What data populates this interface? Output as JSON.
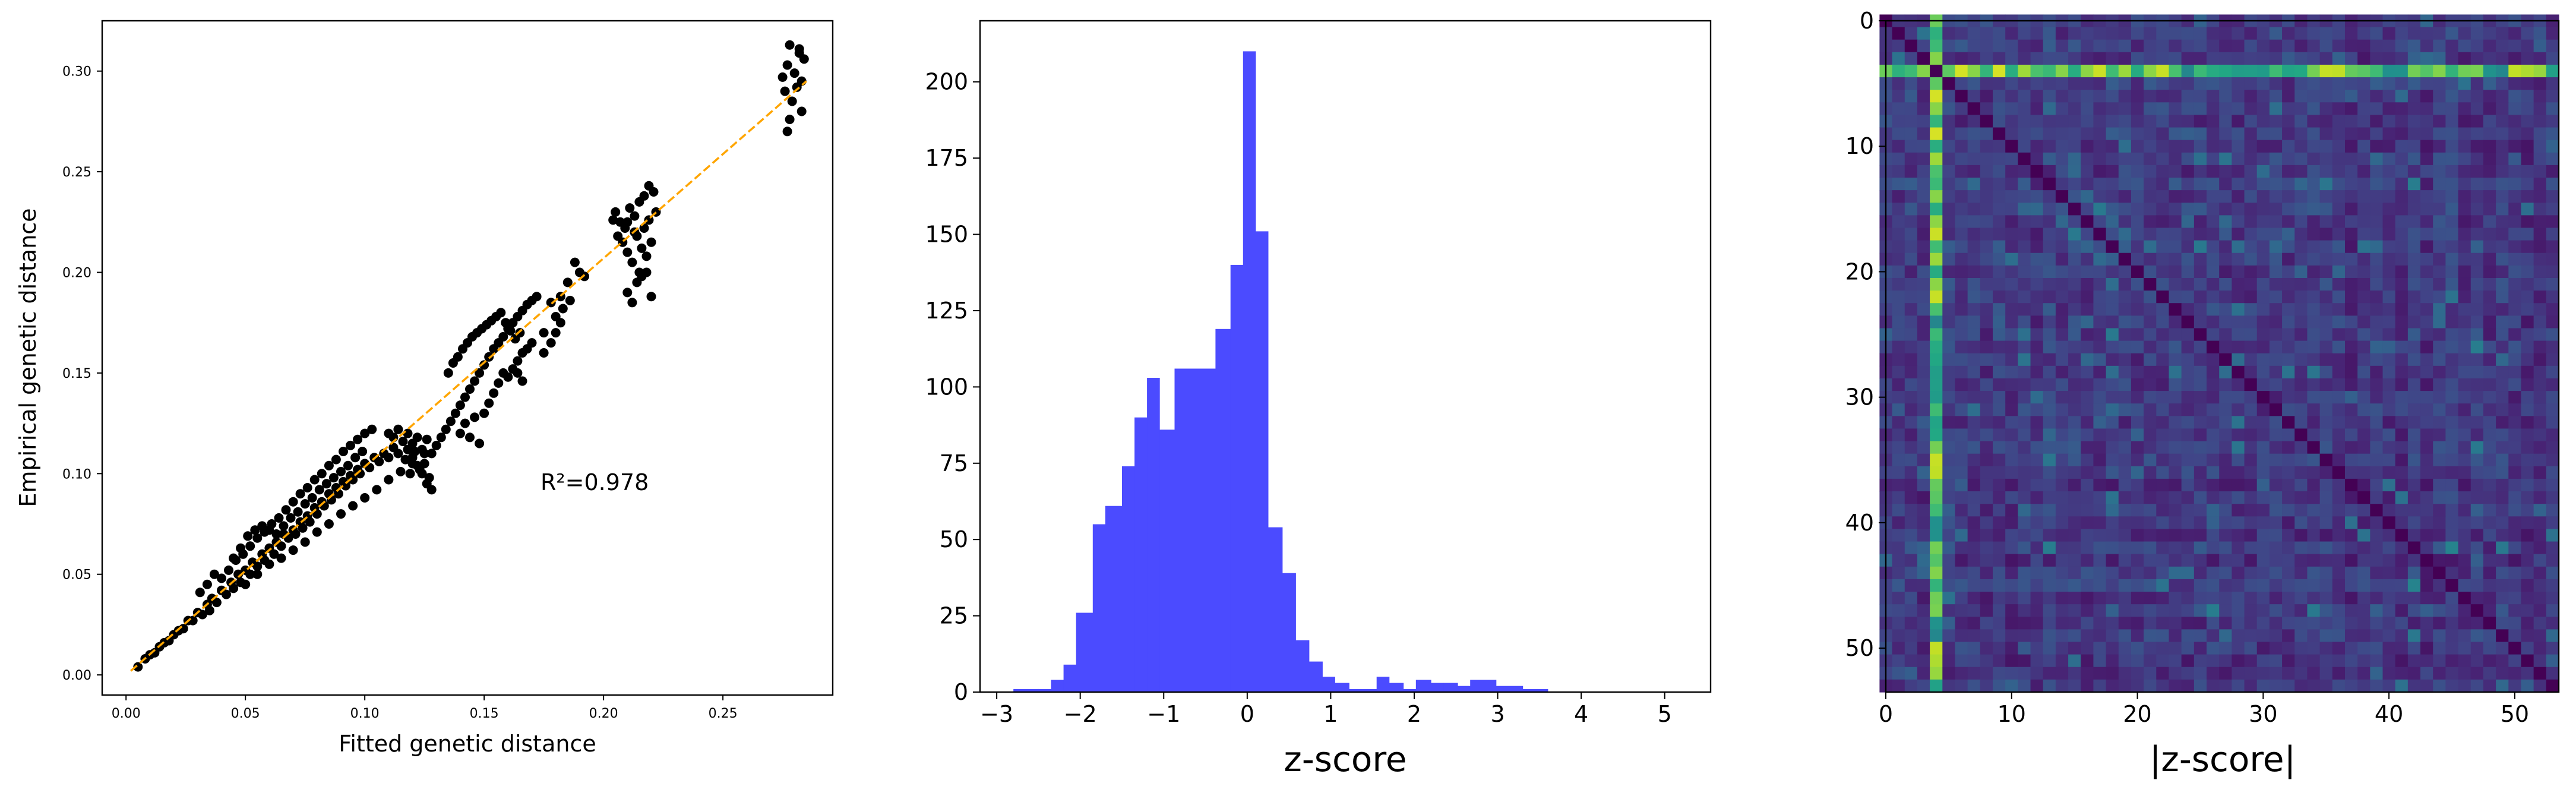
{
  "figure": {
    "panels": [
      {
        "id": "scatter"
      },
      {
        "id": "histogram"
      },
      {
        "id": "heatmap"
      }
    ]
  },
  "chart_data": [
    {
      "type": "scatter",
      "title": "",
      "xlabel": "Fitted genetic distance",
      "ylabel": "Empirical genetic distance",
      "xlim": [
        -0.01,
        0.296
      ],
      "ylim": [
        -0.01,
        0.325
      ],
      "xticks": [
        "0.00",
        "0.05",
        "0.10",
        "0.15",
        "0.20",
        "0.25"
      ],
      "yticks": [
        "0.00",
        "0.05",
        "0.10",
        "0.15",
        "0.20",
        "0.25",
        "0.30"
      ],
      "annotation": "R²=0.978",
      "fit_line": {
        "x": [
          0.002,
          0.285
        ],
        "y": [
          0.002,
          0.295
        ],
        "color": "#FFA500",
        "style": "dashed"
      },
      "point_color": "#000000",
      "points": [
        [
          0.005,
          0.004
        ],
        [
          0.008,
          0.008
        ],
        [
          0.01,
          0.01
        ],
        [
          0.012,
          0.011
        ],
        [
          0.014,
          0.014
        ],
        [
          0.016,
          0.016
        ],
        [
          0.018,
          0.017
        ],
        [
          0.02,
          0.02
        ],
        [
          0.022,
          0.022
        ],
        [
          0.024,
          0.023
        ],
        [
          0.026,
          0.027
        ],
        [
          0.028,
          0.027
        ],
        [
          0.03,
          0.031
        ],
        [
          0.032,
          0.03
        ],
        [
          0.034,
          0.035
        ],
        [
          0.035,
          0.032
        ],
        [
          0.036,
          0.038
        ],
        [
          0.038,
          0.036
        ],
        [
          0.04,
          0.042
        ],
        [
          0.042,
          0.04
        ],
        [
          0.044,
          0.046
        ],
        [
          0.045,
          0.043
        ],
        [
          0.047,
          0.05
        ],
        [
          0.048,
          0.046
        ],
        [
          0.05,
          0.052
        ],
        [
          0.052,
          0.05
        ],
        [
          0.053,
          0.056
        ],
        [
          0.055,
          0.054
        ],
        [
          0.057,
          0.06
        ],
        [
          0.058,
          0.057
        ],
        [
          0.06,
          0.063
        ],
        [
          0.062,
          0.06
        ],
        [
          0.063,
          0.066
        ],
        [
          0.065,
          0.064
        ],
        [
          0.066,
          0.07
        ],
        [
          0.068,
          0.068
        ],
        [
          0.07,
          0.072
        ],
        [
          0.071,
          0.07
        ],
        [
          0.073,
          0.076
        ],
        [
          0.074,
          0.073
        ],
        [
          0.076,
          0.079
        ],
        [
          0.077,
          0.076
        ],
        [
          0.079,
          0.083
        ],
        [
          0.08,
          0.08
        ],
        [
          0.082,
          0.086
        ],
        [
          0.083,
          0.084
        ],
        [
          0.085,
          0.09
        ],
        [
          0.086,
          0.087
        ],
        [
          0.088,
          0.093
        ],
        [
          0.089,
          0.09
        ],
        [
          0.091,
          0.096
        ],
        [
          0.092,
          0.094
        ],
        [
          0.094,
          0.099
        ],
        [
          0.095,
          0.097
        ],
        [
          0.097,
          0.102
        ],
        [
          0.098,
          0.1
        ],
        [
          0.1,
          0.105
        ],
        [
          0.102,
          0.103
        ],
        [
          0.104,
          0.108
        ],
        [
          0.106,
          0.106
        ],
        [
          0.108,
          0.11
        ],
        [
          0.11,
          0.108
        ],
        [
          0.112,
          0.113
        ],
        [
          0.114,
          0.11
        ],
        [
          0.04,
          0.048
        ],
        [
          0.043,
          0.052
        ],
        [
          0.046,
          0.057
        ],
        [
          0.049,
          0.06
        ],
        [
          0.052,
          0.064
        ],
        [
          0.055,
          0.068
        ],
        [
          0.058,
          0.071
        ],
        [
          0.061,
          0.075
        ],
        [
          0.064,
          0.078
        ],
        [
          0.067,
          0.082
        ],
        [
          0.07,
          0.086
        ],
        [
          0.073,
          0.09
        ],
        [
          0.076,
          0.093
        ],
        [
          0.079,
          0.097
        ],
        [
          0.082,
          0.1
        ],
        [
          0.085,
          0.104
        ],
        [
          0.088,
          0.107
        ],
        [
          0.091,
          0.111
        ],
        [
          0.094,
          0.114
        ],
        [
          0.097,
          0.117
        ],
        [
          0.1,
          0.12
        ],
        [
          0.103,
          0.122
        ],
        [
          0.031,
          0.041
        ],
        [
          0.034,
          0.045
        ],
        [
          0.037,
          0.05
        ],
        [
          0.045,
          0.058
        ],
        [
          0.048,
          0.063
        ],
        [
          0.051,
          0.069
        ],
        [
          0.054,
          0.072
        ],
        [
          0.057,
          0.074
        ],
        [
          0.06,
          0.072
        ],
        [
          0.063,
          0.07
        ],
        [
          0.066,
          0.074
        ],
        [
          0.069,
          0.078
        ],
        [
          0.072,
          0.081
        ],
        [
          0.075,
          0.085
        ],
        [
          0.078,
          0.088
        ],
        [
          0.081,
          0.092
        ],
        [
          0.084,
          0.095
        ],
        [
          0.087,
          0.098
        ],
        [
          0.09,
          0.101
        ],
        [
          0.093,
          0.104
        ],
        [
          0.096,
          0.108
        ],
        [
          0.099,
          0.111
        ],
        [
          0.05,
          0.045
        ],
        [
          0.055,
          0.05
        ],
        [
          0.06,
          0.055
        ],
        [
          0.065,
          0.058
        ],
        [
          0.07,
          0.062
        ],
        [
          0.075,
          0.066
        ],
        [
          0.08,
          0.071
        ],
        [
          0.085,
          0.075
        ],
        [
          0.09,
          0.08
        ],
        [
          0.095,
          0.084
        ],
        [
          0.1,
          0.088
        ],
        [
          0.105,
          0.092
        ],
        [
          0.11,
          0.097
        ],
        [
          0.115,
          0.101
        ],
        [
          0.12,
          0.105
        ],
        [
          0.125,
          0.11
        ],
        [
          0.118,
          0.12
        ],
        [
          0.12,
          0.115
        ],
        [
          0.122,
          0.118
        ],
        [
          0.124,
          0.112
        ],
        [
          0.126,
          0.117
        ],
        [
          0.128,
          0.11
        ],
        [
          0.13,
          0.114
        ],
        [
          0.132,
          0.118
        ],
        [
          0.134,
          0.122
        ],
        [
          0.136,
          0.126
        ],
        [
          0.138,
          0.13
        ],
        [
          0.14,
          0.134
        ],
        [
          0.142,
          0.138
        ],
        [
          0.144,
          0.142
        ],
        [
          0.146,
          0.146
        ],
        [
          0.148,
          0.15
        ],
        [
          0.15,
          0.154
        ],
        [
          0.152,
          0.158
        ],
        [
          0.154,
          0.162
        ],
        [
          0.156,
          0.165
        ],
        [
          0.158,
          0.168
        ],
        [
          0.16,
          0.172
        ],
        [
          0.162,
          0.175
        ],
        [
          0.164,
          0.178
        ],
        [
          0.166,
          0.181
        ],
        [
          0.168,
          0.184
        ],
        [
          0.17,
          0.186
        ],
        [
          0.172,
          0.188
        ],
        [
          0.135,
          0.15
        ],
        [
          0.137,
          0.155
        ],
        [
          0.139,
          0.158
        ],
        [
          0.141,
          0.162
        ],
        [
          0.143,
          0.165
        ],
        [
          0.145,
          0.168
        ],
        [
          0.147,
          0.17
        ],
        [
          0.149,
          0.172
        ],
        [
          0.151,
          0.174
        ],
        [
          0.153,
          0.176
        ],
        [
          0.155,
          0.178
        ],
        [
          0.157,
          0.18
        ],
        [
          0.159,
          0.175
        ],
        [
          0.161,
          0.171
        ],
        [
          0.163,
          0.167
        ],
        [
          0.165,
          0.17
        ],
        [
          0.14,
          0.12
        ],
        [
          0.142,
          0.125
        ],
        [
          0.144,
          0.118
        ],
        [
          0.146,
          0.128
        ],
        [
          0.148,
          0.115
        ],
        [
          0.15,
          0.13
        ],
        [
          0.152,
          0.135
        ],
        [
          0.154,
          0.14
        ],
        [
          0.156,
          0.145
        ],
        [
          0.158,
          0.15
        ],
        [
          0.16,
          0.148
        ],
        [
          0.162,
          0.152
        ],
        [
          0.164,
          0.156
        ],
        [
          0.166,
          0.16
        ],
        [
          0.168,
          0.162
        ],
        [
          0.17,
          0.165
        ],
        [
          0.175,
          0.17
        ],
        [
          0.18,
          0.178
        ],
        [
          0.185,
          0.195
        ],
        [
          0.188,
          0.205
        ],
        [
          0.19,
          0.2
        ],
        [
          0.192,
          0.198
        ],
        [
          0.178,
          0.185
        ],
        [
          0.182,
          0.188
        ],
        [
          0.183,
          0.182
        ],
        [
          0.186,
          0.186
        ],
        [
          0.175,
          0.16
        ],
        [
          0.178,
          0.165
        ],
        [
          0.18,
          0.17
        ],
        [
          0.182,
          0.175
        ],
        [
          0.164,
          0.15
        ],
        [
          0.166,
          0.146
        ],
        [
          0.205,
          0.23
        ],
        [
          0.207,
          0.225
        ],
        [
          0.209,
          0.222
        ],
        [
          0.211,
          0.232
        ],
        [
          0.213,
          0.228
        ],
        [
          0.215,
          0.235
        ],
        [
          0.217,
          0.238
        ],
        [
          0.219,
          0.243
        ],
        [
          0.221,
          0.24
        ],
        [
          0.208,
          0.215
        ],
        [
          0.21,
          0.21
        ],
        [
          0.212,
          0.205
        ],
        [
          0.214,
          0.218
        ],
        [
          0.216,
          0.212
        ],
        [
          0.218,
          0.208
        ],
        [
          0.22,
          0.215
        ],
        [
          0.21,
          0.19
        ],
        [
          0.212,
          0.185
        ],
        [
          0.214,
          0.195
        ],
        [
          0.216,
          0.198
        ],
        [
          0.218,
          0.2
        ],
        [
          0.22,
          0.188
        ],
        [
          0.213,
          0.22
        ],
        [
          0.219,
          0.226
        ],
        [
          0.21,
          0.225
        ],
        [
          0.215,
          0.2
        ],
        [
          0.206,
          0.218
        ],
        [
          0.222,
          0.23
        ],
        [
          0.204,
          0.226
        ],
        [
          0.217,
          0.222
        ],
        [
          0.275,
          0.297
        ],
        [
          0.276,
          0.29
        ],
        [
          0.277,
          0.303
        ],
        [
          0.278,
          0.313
        ],
        [
          0.279,
          0.285
        ],
        [
          0.28,
          0.299
        ],
        [
          0.281,
          0.292
        ],
        [
          0.282,
          0.311
        ],
        [
          0.283,
          0.28
        ],
        [
          0.284,
          0.306
        ],
        [
          0.283,
          0.295
        ],
        [
          0.277,
          0.27
        ],
        [
          0.278,
          0.276
        ],
        [
          0.282,
          0.309
        ],
        [
          0.11,
          0.12
        ],
        [
          0.112,
          0.118
        ],
        [
          0.114,
          0.122
        ],
        [
          0.116,
          0.116
        ],
        [
          0.118,
          0.112
        ],
        [
          0.12,
          0.108
        ],
        [
          0.122,
          0.104
        ],
        [
          0.124,
          0.1
        ],
        [
          0.126,
          0.095
        ],
        [
          0.128,
          0.092
        ],
        [
          0.117,
          0.107
        ],
        [
          0.121,
          0.111
        ],
        [
          0.123,
          0.102
        ],
        [
          0.119,
          0.1
        ],
        [
          0.125,
          0.105
        ],
        [
          0.127,
          0.098
        ]
      ]
    },
    {
      "type": "bar",
      "title": "",
      "xlabel": "z-score",
      "ylabel": "",
      "xlim": [
        -3.2,
        5.55
      ],
      "ylim": [
        0,
        220
      ],
      "xticks": [
        "−3",
        "−2",
        "−1",
        "0",
        "1",
        "2",
        "3",
        "4",
        "5"
      ],
      "yticks": [
        "0",
        "25",
        "50",
        "75",
        "100",
        "125",
        "150",
        "175",
        "200"
      ],
      "bar_color": "#4B4BFF",
      "bins": [
        [
          -2.8,
          -2.5,
          1
        ],
        [
          -2.5,
          -2.35,
          1
        ],
        [
          -2.35,
          -2.2,
          4
        ],
        [
          -2.2,
          -2.05,
          9
        ],
        [
          -2.05,
          -1.85,
          26
        ],
        [
          -1.85,
          -1.7,
          55
        ],
        [
          -1.7,
          -1.5,
          61
        ],
        [
          -1.5,
          -1.35,
          74
        ],
        [
          -1.35,
          -1.2,
          90
        ],
        [
          -1.2,
          -1.05,
          103
        ],
        [
          -1.05,
          -0.87,
          86
        ],
        [
          -0.87,
          -0.7,
          106
        ],
        [
          -0.7,
          -0.55,
          106
        ],
        [
          -0.55,
          -0.38,
          106
        ],
        [
          -0.38,
          -0.2,
          119
        ],
        [
          -0.2,
          -0.05,
          140
        ],
        [
          -0.05,
          0.1,
          210
        ],
        [
          0.1,
          0.25,
          151
        ],
        [
          0.25,
          0.42,
          54
        ],
        [
          0.42,
          0.58,
          39
        ],
        [
          0.58,
          0.74,
          17
        ],
        [
          0.74,
          0.9,
          10
        ],
        [
          0.9,
          1.05,
          5
        ],
        [
          1.05,
          1.22,
          3
        ],
        [
          1.22,
          1.38,
          1
        ],
        [
          1.38,
          1.55,
          1
        ],
        [
          1.55,
          1.7,
          5
        ],
        [
          1.7,
          1.87,
          3
        ],
        [
          1.87,
          2.02,
          1
        ],
        [
          2.02,
          2.2,
          4
        ],
        [
          2.2,
          2.35,
          3
        ],
        [
          2.35,
          2.52,
          3
        ],
        [
          2.52,
          2.67,
          2
        ],
        [
          2.67,
          2.98,
          4
        ],
        [
          2.98,
          3.3,
          2
        ],
        [
          3.3,
          3.6,
          1
        ]
      ]
    },
    {
      "type": "heatmap",
      "title": "",
      "xlabel": "|z-score|",
      "ylabel": "",
      "size": 54,
      "xticks": [
        "0",
        "10",
        "20",
        "30",
        "40",
        "50"
      ],
      "yticks": [
        "0",
        "10",
        "20",
        "30",
        "40",
        "50"
      ],
      "colormap": "viridis",
      "highlight_row": 4,
      "highlight_col": 4
    }
  ]
}
